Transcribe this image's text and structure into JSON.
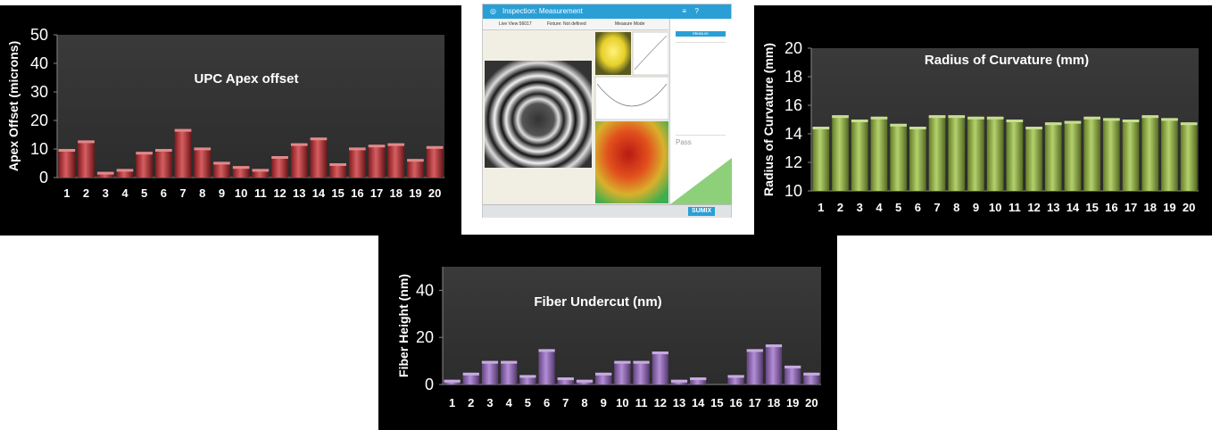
{
  "screenshot": {
    "window_title": "Inspection: Measurement",
    "toolbar": {
      "live_view": "Live View 56017",
      "fixture": "Fixture: Not defined",
      "measure_mode": "Measure Mode"
    },
    "side": {
      "button": "Measure",
      "pass_label": "Pass",
      "brand": "SUMIX"
    }
  },
  "chart_data": [
    {
      "id": "apex",
      "type": "bar",
      "title": "UPC Apex offset",
      "xlabel": "",
      "ylabel": "Apex Offset (microns)",
      "categories": [
        "1",
        "2",
        "3",
        "4",
        "5",
        "6",
        "7",
        "8",
        "9",
        "10",
        "11",
        "12",
        "13",
        "14",
        "15",
        "16",
        "17",
        "18",
        "19",
        "20"
      ],
      "values": [
        10,
        13,
        2,
        3,
        9,
        10,
        17,
        10.5,
        5.5,
        4,
        3,
        7.5,
        12,
        14,
        5,
        10.5,
        11.5,
        12,
        6.5,
        11
      ],
      "ylim": [
        0,
        50
      ],
      "yticks": [
        "0",
        "10",
        "20",
        "30",
        "40",
        "50"
      ],
      "color": "#c8282c",
      "grid": false
    },
    {
      "id": "roc",
      "type": "bar",
      "title": "Radius of Curvature (mm)",
      "xlabel": "",
      "ylabel": "Radius of Curvature (mm)",
      "categories": [
        "1",
        "2",
        "3",
        "4",
        "5",
        "6",
        "7",
        "8",
        "9",
        "10",
        "11",
        "12",
        "13",
        "14",
        "15",
        "16",
        "17",
        "18",
        "19",
        "20"
      ],
      "values": [
        14.5,
        15.3,
        15.0,
        15.2,
        14.7,
        14.5,
        15.3,
        15.3,
        15.2,
        15.2,
        15.0,
        14.5,
        14.8,
        14.9,
        15.2,
        15.1,
        15.0,
        15.3,
        15.1,
        14.8
      ],
      "ylim": [
        10,
        20
      ],
      "yticks": [
        "10",
        "12",
        "14",
        "16",
        "18",
        "20"
      ],
      "color": "#9bc13c",
      "grid": false
    },
    {
      "id": "undercut",
      "type": "bar",
      "title": "Fiber Undercut (nm)",
      "xlabel": "",
      "ylabel": "Fiber Height (nm)",
      "categories": [
        "1",
        "2",
        "3",
        "4",
        "5",
        "6",
        "7",
        "8",
        "9",
        "10",
        "11",
        "12",
        "13",
        "14",
        "15",
        "16",
        "17",
        "18",
        "19",
        "20"
      ],
      "values": [
        2,
        5,
        10,
        10,
        4,
        15,
        3,
        2,
        5,
        10,
        10,
        14,
        2,
        3,
        0,
        4,
        15,
        17,
        8,
        5
      ],
      "ylim": [
        0,
        50
      ],
      "yticks": [
        "0",
        "20",
        "40"
      ],
      "ytick_values": [
        0,
        20,
        40
      ],
      "color": "#9a68c8",
      "grid": false
    }
  ]
}
